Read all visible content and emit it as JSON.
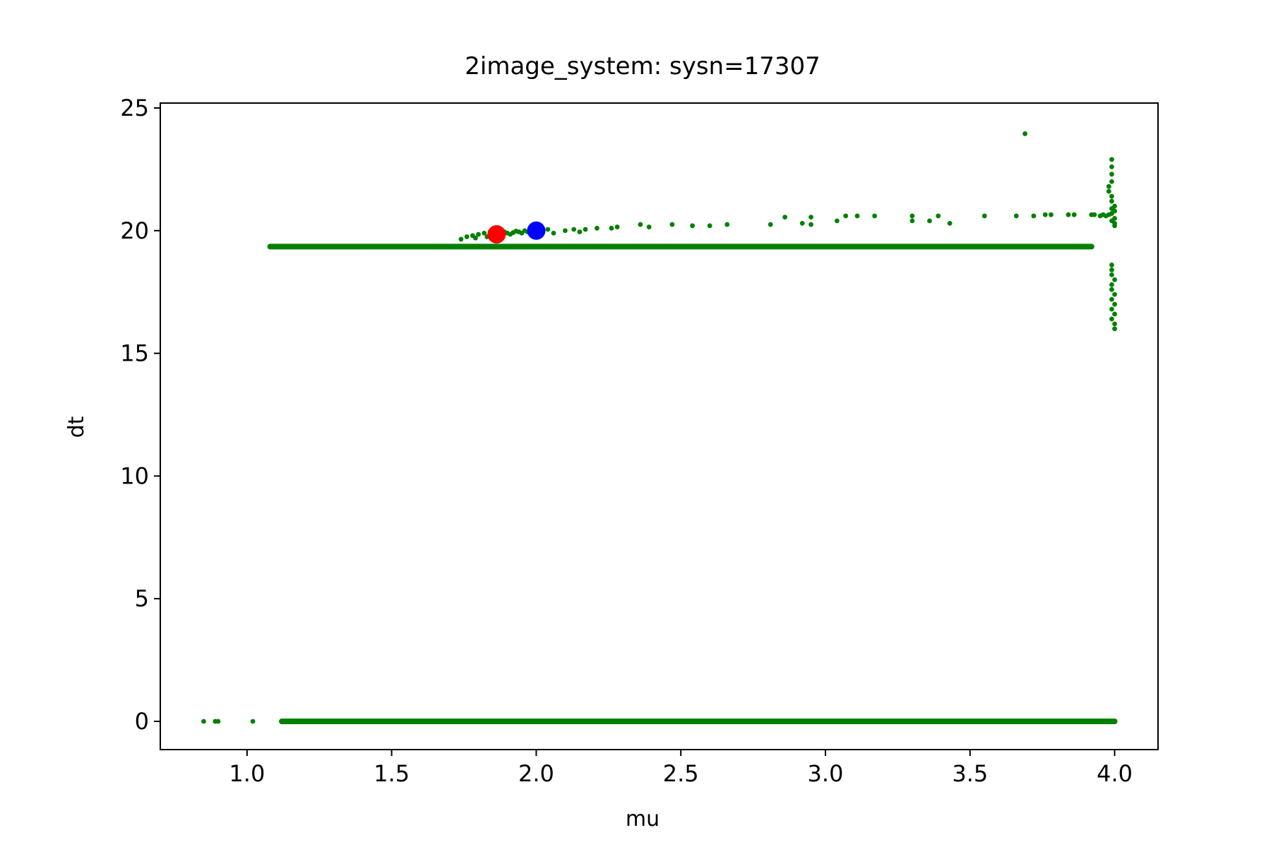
{
  "chart_data": {
    "type": "scatter",
    "title": "2image_system: sysn=17307",
    "xlabel": "mu",
    "ylabel": "dt",
    "xlim": [
      0.7,
      4.15
    ],
    "ylim": [
      -1.15,
      25.2
    ],
    "x_ticks": [
      1.0,
      1.5,
      2.0,
      2.5,
      3.0,
      3.5,
      4.0
    ],
    "x_tick_labels": [
      "1.0",
      "1.5",
      "2.0",
      "2.5",
      "3.0",
      "3.5",
      "4.0"
    ],
    "y_ticks": [
      0,
      5,
      10,
      15,
      20,
      25
    ],
    "y_tick_labels": [
      "0",
      "5",
      "10",
      "15",
      "20",
      "25"
    ],
    "grid": false,
    "legend": "none",
    "colors": {
      "samples": "#008000",
      "marker_a": "#ff0000",
      "marker_b": "#0000ff"
    },
    "bands": [
      {
        "x_start": 1.12,
        "x_end": 4.0,
        "y": 0.0
      },
      {
        "x_start": 1.08,
        "x_end": 3.92,
        "y": 19.35
      }
    ],
    "series": [
      {
        "color": "#008000",
        "points": [
          [
            0.85,
            0.0
          ],
          [
            0.89,
            0.0
          ],
          [
            0.9,
            0.0
          ],
          [
            1.02,
            0.0
          ],
          [
            1.74,
            19.65
          ],
          [
            1.76,
            19.75
          ],
          [
            1.78,
            19.8
          ],
          [
            1.79,
            19.7
          ],
          [
            1.8,
            19.85
          ],
          [
            1.82,
            19.9
          ],
          [
            1.83,
            19.75
          ],
          [
            1.84,
            19.95
          ],
          [
            1.85,
            19.85
          ],
          [
            1.87,
            19.9
          ],
          [
            1.88,
            19.8
          ],
          [
            1.89,
            19.95
          ],
          [
            1.9,
            19.9
          ],
          [
            1.91,
            19.85
          ],
          [
            1.92,
            19.92
          ],
          [
            1.93,
            19.98
          ],
          [
            1.94,
            19.95
          ],
          [
            1.95,
            19.9
          ],
          [
            1.96,
            20.0
          ],
          [
            1.97,
            19.95
          ],
          [
            1.98,
            20.0
          ],
          [
            1.99,
            19.98
          ],
          [
            2.04,
            20.05
          ],
          [
            2.06,
            19.9
          ],
          [
            2.1,
            20.0
          ],
          [
            2.13,
            20.05
          ],
          [
            2.15,
            19.95
          ],
          [
            2.17,
            20.05
          ],
          [
            2.21,
            20.1
          ],
          [
            2.26,
            20.1
          ],
          [
            2.28,
            20.15
          ],
          [
            2.36,
            20.25
          ],
          [
            2.39,
            20.15
          ],
          [
            2.47,
            20.25
          ],
          [
            2.54,
            20.2
          ],
          [
            2.6,
            20.2
          ],
          [
            2.66,
            20.25
          ],
          [
            2.81,
            20.25
          ],
          [
            2.86,
            20.55
          ],
          [
            2.92,
            20.3
          ],
          [
            2.95,
            20.55
          ],
          [
            2.95,
            20.25
          ],
          [
            3.04,
            20.4
          ],
          [
            3.07,
            20.6
          ],
          [
            3.11,
            20.6
          ],
          [
            3.17,
            20.6
          ],
          [
            3.3,
            20.6
          ],
          [
            3.3,
            20.4
          ],
          [
            3.36,
            20.4
          ],
          [
            3.39,
            20.6
          ],
          [
            3.43,
            20.3
          ],
          [
            3.55,
            20.6
          ],
          [
            3.66,
            20.6
          ],
          [
            3.69,
            23.95
          ],
          [
            3.72,
            20.6
          ],
          [
            3.76,
            20.65
          ],
          [
            3.78,
            20.65
          ],
          [
            3.84,
            20.65
          ],
          [
            3.86,
            20.65
          ],
          [
            3.92,
            20.65
          ],
          [
            3.93,
            20.65
          ],
          [
            3.95,
            20.6
          ],
          [
            3.96,
            20.65
          ],
          [
            3.97,
            20.6
          ],
          [
            3.98,
            20.65
          ]
        ]
      },
      {
        "color": "#008000",
        "points": [
          [
            3.99,
            22.9
          ],
          [
            3.99,
            22.6
          ],
          [
            3.99,
            22.3
          ],
          [
            3.99,
            22.0
          ],
          [
            3.98,
            21.8
          ],
          [
            3.98,
            21.6
          ],
          [
            3.99,
            21.4
          ],
          [
            3.99,
            21.2
          ],
          [
            4.0,
            21.0
          ],
          [
            3.99,
            20.9
          ],
          [
            4.0,
            20.8
          ],
          [
            3.99,
            20.7
          ],
          [
            4.0,
            20.5
          ],
          [
            3.99,
            20.4
          ],
          [
            4.0,
            20.3
          ],
          [
            4.0,
            20.2
          ],
          [
            3.99,
            18.6
          ],
          [
            3.99,
            18.4
          ],
          [
            3.99,
            18.2
          ],
          [
            4.0,
            18.0
          ],
          [
            3.99,
            17.8
          ],
          [
            3.99,
            17.6
          ],
          [
            4.0,
            17.4
          ],
          [
            3.99,
            17.2
          ],
          [
            4.0,
            17.0
          ],
          [
            3.99,
            16.8
          ],
          [
            4.0,
            16.6
          ],
          [
            3.99,
            16.4
          ],
          [
            4.0,
            16.2
          ],
          [
            4.0,
            16.0
          ]
        ]
      }
    ],
    "highlights": [
      {
        "x": 1.863,
        "y": 19.85,
        "color": "#ff0000"
      },
      {
        "x": 2.0,
        "y": 20.0,
        "color": "#0000ff"
      }
    ]
  }
}
